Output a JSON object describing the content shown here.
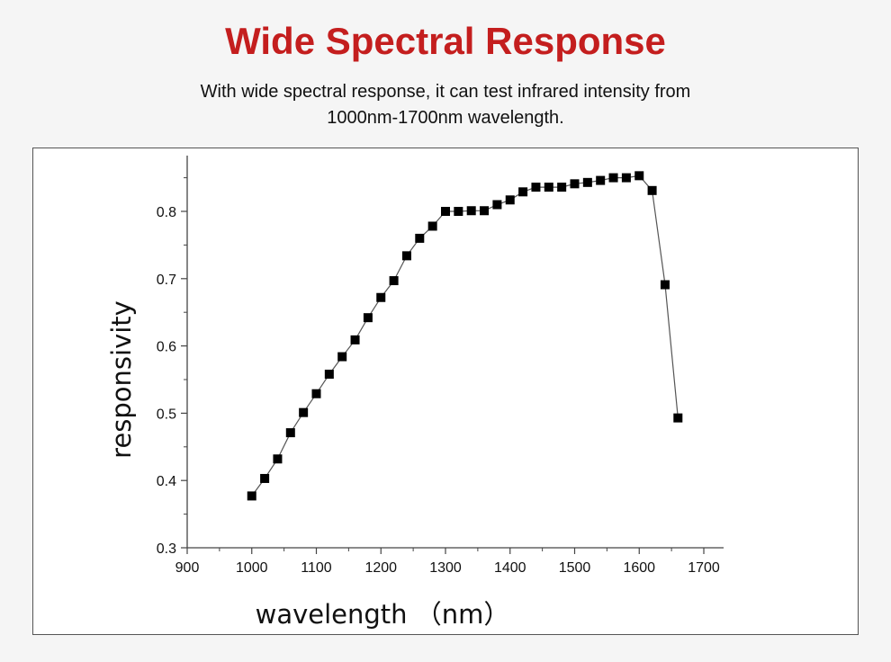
{
  "header": {
    "title": "Wide Spectral Response",
    "subtitle_line1": "With wide spectral response, it can test infrared intensity from",
    "subtitle_line2": "1000nm-1700nm wavelength."
  },
  "colors": {
    "title": "#c41e1e",
    "series": "#000000",
    "line": "#555555"
  },
  "chart_data": {
    "type": "line",
    "xlabel": "wavelength （nm）",
    "ylabel": "responsivity",
    "xlim": [
      900,
      1700
    ],
    "ylim": [
      0.3,
      0.9
    ],
    "xticks": [
      900,
      1000,
      1100,
      1200,
      1300,
      1400,
      1500,
      1600,
      1700
    ],
    "yticks": [
      0.3,
      0.4,
      0.5,
      0.6,
      0.7,
      0.8
    ],
    "ytick_labels": [
      "0.3",
      "0.4",
      "0.5",
      "0.6",
      "0.7",
      "0.8"
    ],
    "grid": false,
    "marker": "square",
    "x": [
      1000,
      1020,
      1040,
      1060,
      1080,
      1100,
      1120,
      1140,
      1160,
      1180,
      1200,
      1220,
      1240,
      1260,
      1280,
      1300,
      1320,
      1340,
      1360,
      1380,
      1400,
      1420,
      1440,
      1460,
      1480,
      1500,
      1520,
      1540,
      1560,
      1580,
      1600,
      1620,
      1640,
      1660
    ],
    "y": [
      0.377,
      0.403,
      0.432,
      0.471,
      0.501,
      0.529,
      0.558,
      0.584,
      0.609,
      0.642,
      0.672,
      0.697,
      0.734,
      0.76,
      0.778,
      0.8,
      0.8,
      0.801,
      0.801,
      0.81,
      0.817,
      0.829,
      0.836,
      0.836,
      0.836,
      0.841,
      0.843,
      0.846,
      0.85,
      0.85,
      0.853,
      0.831,
      0.691,
      0.493
    ]
  }
}
